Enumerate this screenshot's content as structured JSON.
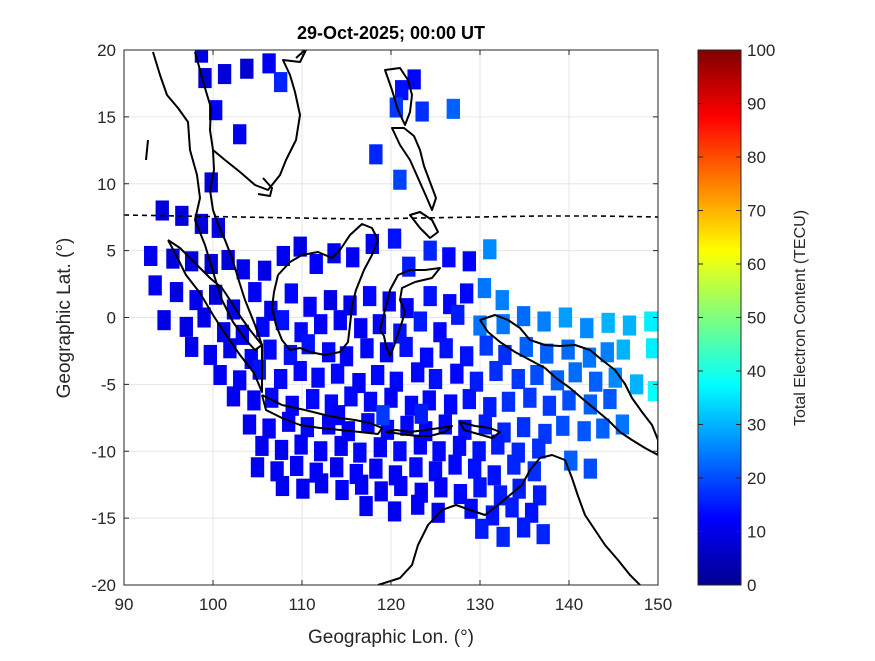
{
  "chart_data": {
    "type": "heatmap",
    "title": "29-Oct-2025; 00:00 UT",
    "xlabel": "Geographic Lon. (°)",
    "ylabel": "Geographic Lat. (°)",
    "xlim": [
      90,
      150
    ],
    "ylim": [
      -20,
      20
    ],
    "xticks": [
      "90",
      "100",
      "110",
      "120",
      "130",
      "140",
      "150"
    ],
    "yticks": [
      "20",
      "15",
      "10",
      "5",
      "0",
      "-5",
      "-10",
      "-15",
      "-20"
    ],
    "grid": true,
    "colorbar": {
      "label": "Total Electron Content (TECU)",
      "range": [
        0,
        100
      ],
      "ticks": [
        "100",
        "90",
        "80",
        "70",
        "60",
        "50",
        "40",
        "30",
        "20",
        "10",
        "0"
      ],
      "colormap": "jet"
    },
    "overlays": [
      "coastlines",
      "magnetic-equator (dashed)"
    ],
    "cell_size_deg": [
      1.5,
      1.5
    ],
    "points": [
      [
        98.7,
        19.8,
        10
      ],
      [
        101.3,
        18.2,
        9
      ],
      [
        103.8,
        18.6,
        8
      ],
      [
        106.3,
        19.0,
        12
      ],
      [
        107.6,
        17.6,
        16
      ],
      [
        99.1,
        17.9,
        8
      ],
      [
        100.3,
        15.5,
        12
      ],
      [
        103.0,
        13.7,
        11
      ],
      [
        99.8,
        10.1,
        9
      ],
      [
        121.2,
        17.0,
        14
      ],
      [
        122.6,
        17.8,
        13
      ],
      [
        120.6,
        15.7,
        18
      ],
      [
        123.5,
        15.4,
        17
      ],
      [
        127.0,
        15.6,
        22
      ],
      [
        118.3,
        12.2,
        16
      ],
      [
        121.0,
        10.3,
        19
      ],
      [
        94.3,
        8.0,
        9
      ],
      [
        96.5,
        7.6,
        9
      ],
      [
        98.7,
        7.0,
        9
      ],
      [
        100.6,
        6.7,
        9
      ],
      [
        93.0,
        4.6,
        11
      ],
      [
        95.5,
        4.4,
        9
      ],
      [
        97.6,
        4.2,
        9
      ],
      [
        99.8,
        4.0,
        8
      ],
      [
        101.7,
        4.3,
        9
      ],
      [
        103.4,
        3.6,
        11
      ],
      [
        105.8,
        3.5,
        10
      ],
      [
        107.9,
        4.6,
        11
      ],
      [
        109.8,
        5.3,
        10
      ],
      [
        111.6,
        4.0,
        12
      ],
      [
        113.6,
        4.8,
        11
      ],
      [
        115.7,
        4.5,
        12
      ],
      [
        117.9,
        5.5,
        12
      ],
      [
        120.4,
        5.9,
        14
      ],
      [
        122.0,
        3.8,
        15
      ],
      [
        124.4,
        5.0,
        16
      ],
      [
        126.5,
        4.5,
        13
      ],
      [
        128.8,
        4.2,
        12
      ],
      [
        131.1,
        5.1,
        26
      ],
      [
        93.5,
        2.4,
        11
      ],
      [
        95.9,
        1.9,
        10
      ],
      [
        98.1,
        1.3,
        11
      ],
      [
        100.3,
        1.7,
        9
      ],
      [
        102.3,
        0.6,
        11
      ],
      [
        104.7,
        1.9,
        12
      ],
      [
        106.5,
        0.5,
        11
      ],
      [
        108.8,
        1.8,
        13
      ],
      [
        110.9,
        0.8,
        12
      ],
      [
        113.2,
        1.3,
        10
      ],
      [
        115.4,
        0.9,
        11
      ],
      [
        117.6,
        1.6,
        13
      ],
      [
        119.8,
        1.2,
        12
      ],
      [
        121.8,
        0.7,
        12
      ],
      [
        124.4,
        1.6,
        14
      ],
      [
        126.6,
        1.0,
        13
      ],
      [
        128.5,
        1.8,
        13
      ],
      [
        130.5,
        2.2,
        24
      ],
      [
        132.5,
        1.3,
        25
      ],
      [
        94.5,
        -0.2,
        10
      ],
      [
        97.0,
        -0.7,
        10
      ],
      [
        99.0,
        0.0,
        10
      ],
      [
        101.2,
        -1.1,
        11
      ],
      [
        103.3,
        -1.3,
        12
      ],
      [
        105.6,
        -0.7,
        13
      ],
      [
        107.8,
        -0.2,
        14
      ],
      [
        109.9,
        -1.1,
        13
      ],
      [
        112.1,
        -0.5,
        12
      ],
      [
        114.3,
        -0.2,
        12
      ],
      [
        116.6,
        -0.8,
        11
      ],
      [
        118.7,
        -0.5,
        13
      ],
      [
        121.0,
        -1.2,
        14
      ],
      [
        123.3,
        -0.3,
        15
      ],
      [
        125.5,
        -1.1,
        13
      ],
      [
        127.5,
        0.2,
        15
      ],
      [
        130.0,
        -0.6,
        24
      ],
      [
        132.6,
        -0.5,
        24
      ],
      [
        134.9,
        0.1,
        23
      ],
      [
        137.2,
        -0.3,
        25
      ],
      [
        139.6,
        0.0,
        28
      ],
      [
        142.0,
        -0.8,
        26
      ],
      [
        144.4,
        -0.4,
        30
      ],
      [
        146.8,
        -0.6,
        30
      ],
      [
        149.2,
        -0.3,
        36
      ],
      [
        97.6,
        -2.2,
        11
      ],
      [
        99.7,
        -2.8,
        11
      ],
      [
        101.9,
        -2.3,
        11
      ],
      [
        104.3,
        -3.1,
        12
      ],
      [
        106.4,
        -2.4,
        13
      ],
      [
        108.7,
        -2.8,
        14
      ],
      [
        110.7,
        -2.0,
        14
      ],
      [
        113.0,
        -2.6,
        13
      ],
      [
        115.0,
        -2.9,
        12
      ],
      [
        117.3,
        -2.3,
        13
      ],
      [
        119.5,
        -2.6,
        12
      ],
      [
        121.7,
        -2.2,
        14
      ],
      [
        124.0,
        -3.0,
        13
      ],
      [
        126.2,
        -2.3,
        14
      ],
      [
        128.5,
        -2.9,
        14
      ],
      [
        130.7,
        -2.1,
        18
      ],
      [
        132.8,
        -2.8,
        17
      ],
      [
        135.2,
        -2.2,
        22
      ],
      [
        137.5,
        -2.7,
        22
      ],
      [
        139.9,
        -2.4,
        23
      ],
      [
        142.3,
        -3.0,
        24
      ],
      [
        144.3,
        -2.6,
        25
      ],
      [
        146.1,
        -2.4,
        30
      ],
      [
        149.4,
        -2.3,
        36
      ],
      [
        100.8,
        -4.3,
        11
      ],
      [
        103.0,
        -4.7,
        12
      ],
      [
        105.2,
        -3.9,
        14
      ],
      [
        107.6,
        -4.6,
        13
      ],
      [
        109.8,
        -4.0,
        13
      ],
      [
        111.8,
        -4.5,
        13
      ],
      [
        114.0,
        -4.2,
        13
      ],
      [
        116.4,
        -4.9,
        12
      ],
      [
        118.5,
        -4.3,
        13
      ],
      [
        120.6,
        -4.8,
        13
      ],
      [
        123.0,
        -4.1,
        13
      ],
      [
        125.0,
        -4.6,
        14
      ],
      [
        127.4,
        -4.2,
        13
      ],
      [
        129.6,
        -4.8,
        15
      ],
      [
        131.8,
        -4.0,
        17
      ],
      [
        134.3,
        -4.6,
        18
      ],
      [
        136.4,
        -4.3,
        20
      ],
      [
        138.7,
        -4.7,
        22
      ],
      [
        140.7,
        -4.1,
        23
      ],
      [
        143.0,
        -4.8,
        22
      ],
      [
        145.2,
        -4.5,
        26
      ],
      [
        147.6,
        -5.0,
        30
      ],
      [
        149.6,
        -5.5,
        38
      ],
      [
        102.3,
        -5.9,
        11
      ],
      [
        104.6,
        -6.2,
        12
      ],
      [
        106.6,
        -6.0,
        13
      ],
      [
        108.9,
        -6.6,
        12
      ],
      [
        111.2,
        -6.1,
        13
      ],
      [
        113.3,
        -6.5,
        13
      ],
      [
        115.5,
        -5.9,
        13
      ],
      [
        117.7,
        -6.3,
        13
      ],
      [
        120.0,
        -6.0,
        12
      ],
      [
        122.3,
        -6.6,
        13
      ],
      [
        124.3,
        -6.2,
        13
      ],
      [
        126.7,
        -6.5,
        13
      ],
      [
        128.8,
        -6.1,
        14
      ],
      [
        131.1,
        -6.7,
        15
      ],
      [
        133.2,
        -6.3,
        17
      ],
      [
        135.6,
        -6.0,
        18
      ],
      [
        137.8,
        -6.6,
        18
      ],
      [
        140.0,
        -6.2,
        20
      ],
      [
        142.4,
        -6.5,
        22
      ],
      [
        144.6,
        -6.1,
        21
      ],
      [
        104.1,
        -8.0,
        11
      ],
      [
        106.3,
        -8.3,
        12
      ],
      [
        108.5,
        -7.8,
        12
      ],
      [
        110.6,
        -8.2,
        13
      ],
      [
        113.0,
        -8.0,
        12
      ],
      [
        115.2,
        -8.5,
        12
      ],
      [
        117.4,
        -7.9,
        13
      ],
      [
        119.6,
        -8.4,
        13
      ],
      [
        121.8,
        -8.1,
        13
      ],
      [
        123.9,
        -8.5,
        12
      ],
      [
        126.1,
        -8.0,
        13
      ],
      [
        128.3,
        -8.4,
        14
      ],
      [
        130.6,
        -8.0,
        15
      ],
      [
        132.7,
        -8.6,
        16
      ],
      [
        134.9,
        -8.2,
        17
      ],
      [
        137.3,
        -8.7,
        18
      ],
      [
        139.3,
        -8.1,
        20
      ],
      [
        141.7,
        -8.5,
        21
      ],
      [
        143.8,
        -8.3,
        22
      ],
      [
        146.0,
        -8.0,
        24
      ],
      [
        105.5,
        -9.6,
        11
      ],
      [
        107.7,
        -9.9,
        11
      ],
      [
        109.9,
        -9.5,
        12
      ],
      [
        112.1,
        -10.0,
        12
      ],
      [
        114.4,
        -9.6,
        12
      ],
      [
        116.5,
        -10.1,
        13
      ],
      [
        118.8,
        -9.7,
        12
      ],
      [
        121.0,
        -10.0,
        13
      ],
      [
        123.3,
        -9.5,
        12
      ],
      [
        125.4,
        -10.0,
        13
      ],
      [
        127.7,
        -9.6,
        13
      ],
      [
        129.9,
        -10.0,
        14
      ],
      [
        132.0,
        -9.5,
        15
      ],
      [
        134.3,
        -10.1,
        16
      ],
      [
        136.6,
        -9.8,
        17
      ],
      [
        105.0,
        -11.2,
        11
      ],
      [
        107.2,
        -11.5,
        11
      ],
      [
        109.4,
        -11.1,
        12
      ],
      [
        111.6,
        -11.6,
        12
      ],
      [
        113.9,
        -11.2,
        11
      ],
      [
        116.1,
        -11.7,
        12
      ],
      [
        118.3,
        -11.3,
        12
      ],
      [
        120.5,
        -11.8,
        12
      ],
      [
        122.8,
        -11.2,
        13
      ],
      [
        125.0,
        -11.5,
        13
      ],
      [
        127.2,
        -11.0,
        13
      ],
      [
        129.4,
        -11.3,
        14
      ],
      [
        131.6,
        -11.8,
        14
      ],
      [
        133.8,
        -11.0,
        16
      ],
      [
        136.1,
        -11.5,
        17
      ],
      [
        140.2,
        -10.7,
        22
      ],
      [
        142.4,
        -11.3,
        20
      ],
      [
        107.8,
        -12.6,
        11
      ],
      [
        110.1,
        -12.8,
        11
      ],
      [
        112.2,
        -12.4,
        11
      ],
      [
        114.5,
        -12.9,
        12
      ],
      [
        116.7,
        -12.5,
        12
      ],
      [
        118.9,
        -13.0,
        11
      ],
      [
        121.1,
        -12.6,
        12
      ],
      [
        123.4,
        -13.1,
        12
      ],
      [
        125.6,
        -12.7,
        12
      ],
      [
        127.8,
        -13.2,
        13
      ],
      [
        130.0,
        -12.7,
        14
      ],
      [
        132.3,
        -13.3,
        15
      ],
      [
        134.4,
        -12.8,
        15
      ],
      [
        136.7,
        -13.3,
        15
      ],
      [
        117.2,
        -14.1,
        11
      ],
      [
        120.4,
        -14.5,
        11
      ],
      [
        123.0,
        -14.0,
        12
      ],
      [
        125.3,
        -14.6,
        11
      ],
      [
        129.0,
        -14.3,
        13
      ],
      [
        131.4,
        -14.8,
        14
      ],
      [
        133.6,
        -14.2,
        15
      ],
      [
        135.8,
        -14.6,
        14
      ],
      [
        130.2,
        -15.8,
        15
      ],
      [
        132.6,
        -16.4,
        16
      ],
      [
        134.9,
        -15.7,
        15
      ],
      [
        137.1,
        -16.2,
        16
      ],
      [
        119.1,
        -7.3,
        18
      ],
      [
        114.1,
        -7.3,
        12
      ],
      [
        123.4,
        -7.2,
        15
      ]
    ]
  }
}
